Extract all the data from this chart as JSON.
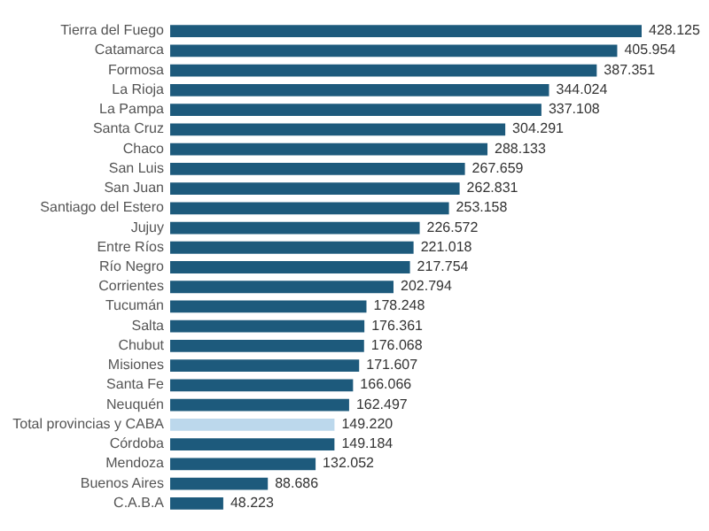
{
  "chart_data": {
    "type": "bar",
    "orientation": "horizontal",
    "categories": [
      "Tierra del Fuego",
      "Catamarca",
      "Formosa",
      "La Rioja",
      "La Pampa",
      "Santa Cruz",
      "Chaco",
      "San Luis",
      "San Juan",
      "Santiago del Estero",
      "Jujuy",
      "Entre Ríos",
      "Río Negro",
      "Corrientes",
      "Tucumán",
      "Salta",
      "Chubut",
      "Misiones",
      "Santa Fe",
      "Neuquén",
      "Total provincias y CABA",
      "Córdoba",
      "Mendoza",
      "Buenos Aires",
      "C.A.B.A"
    ],
    "values": [
      428125,
      405954,
      387351,
      344024,
      337108,
      304291,
      288133,
      267659,
      262831,
      253158,
      226572,
      221018,
      217754,
      202794,
      178248,
      176361,
      176068,
      171607,
      166066,
      162497,
      149220,
      149184,
      132052,
      88686,
      48223
    ],
    "value_labels": [
      "428.125",
      "405.954",
      "387.351",
      "344.024",
      "337.108",
      "304.291",
      "288.133",
      "267.659",
      "262.831",
      "253.158",
      "226.572",
      "221.018",
      "217.754",
      "202.794",
      "178.248",
      "176.361",
      "176.068",
      "171.607",
      "166.066",
      "162.497",
      "149.220",
      "149.184",
      "132.052",
      "88.686",
      "48.223"
    ],
    "colors": [
      "#1d5a7c",
      "#1d5a7c",
      "#1d5a7c",
      "#1d5a7c",
      "#1d5a7c",
      "#1d5a7c",
      "#1d5a7c",
      "#1d5a7c",
      "#1d5a7c",
      "#1d5a7c",
      "#1d5a7c",
      "#1d5a7c",
      "#1d5a7c",
      "#1d5a7c",
      "#1d5a7c",
      "#1d5a7c",
      "#1d5a7c",
      "#1d5a7c",
      "#1d5a7c",
      "#1d5a7c",
      "#bcd8ec",
      "#1d5a7c",
      "#1d5a7c",
      "#1d5a7c",
      "#1d5a7c"
    ],
    "legend": false
  }
}
